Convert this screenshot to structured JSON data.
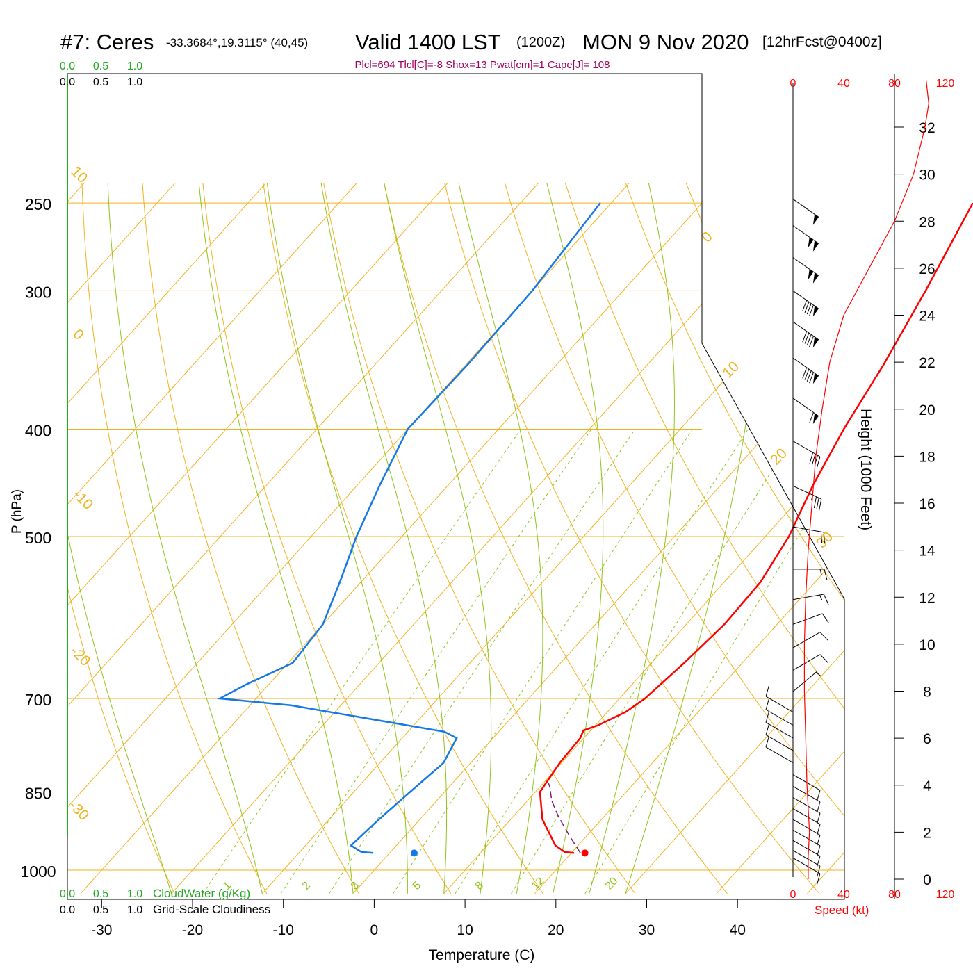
{
  "header": {
    "station": "#7: Ceres",
    "coords": "-33.3684°,19.3115° (40,45)",
    "valid": "Valid 1400 LST",
    "zulu": "(1200Z)",
    "date": "MON 9 Nov 2020",
    "fcst": "[12hrFcst@0400z]"
  },
  "indices": "Plcl=694 Tlcl[C]=-8 Shox=13 Pwat[cm]=1 Cape[J]= 108",
  "axes": {
    "xlabel": "Temperature (C)",
    "ylabel": "P (hPa)",
    "height_label": "Height (1000 Feet)",
    "speed_label": "Speed (kt)",
    "cloudwater_label": "CloudWater (g/Kg)",
    "cloudiness_label": "Grid-Scale Cloudiness",
    "x_ticks": [
      "-30",
      "-20",
      "-10",
      "0",
      "10",
      "20",
      "30",
      "40"
    ],
    "p_ticks": [
      "250",
      "300",
      "400",
      "500",
      "700",
      "850",
      "1000"
    ],
    "height_ticks": [
      "0",
      "2",
      "4",
      "6",
      "8",
      "10",
      "12",
      "14",
      "16",
      "18",
      "20",
      "22",
      "24",
      "26",
      "28",
      "30",
      "32"
    ],
    "speed_ticks": [
      "0",
      "40",
      "80",
      "120"
    ],
    "cloud_ticks": [
      "0.0",
      "0.5",
      "1.0"
    ]
  },
  "chart_data": {
    "type": "line",
    "title": "#7: Ceres Valid 1400 LST (1200Z) MON 9 Nov 2020 [12hrFcst@0400z]",
    "xlabel": "Temperature (C)",
    "ylabel": "P (hPa)",
    "xlim": [
      -33,
      46
    ],
    "ylim_hpa": [
      1000,
      250
    ],
    "isotherm_labels": [
      "10",
      "0",
      "-10",
      "-20",
      "-30",
      "0",
      "10",
      "20",
      "30"
    ],
    "mixing_ratio_labels": [
      "1",
      "2",
      "3",
      "5",
      "8",
      "12",
      "20"
    ],
    "series": [
      {
        "name": "temperature",
        "color": "#ff0000",
        "points": [
          [
            20.3,
            965
          ],
          [
            19.2,
            963
          ],
          [
            17.5,
            950
          ],
          [
            13.5,
            900
          ],
          [
            10.5,
            850
          ],
          [
            9.8,
            800
          ],
          [
            9.6,
            760
          ],
          [
            9.2,
            748
          ],
          [
            10.3,
            740
          ],
          [
            12.0,
            720
          ],
          [
            12.8,
            700
          ],
          [
            13.6,
            650
          ],
          [
            14.2,
            600
          ],
          [
            14.0,
            550
          ],
          [
            12.6,
            500
          ],
          [
            10.2,
            450
          ],
          [
            8.0,
            400
          ],
          [
            6.0,
            350
          ],
          [
            3.3,
            300
          ],
          [
            -0.2,
            250
          ]
        ]
      },
      {
        "name": "dewpoint",
        "color": "#1478e6",
        "points": [
          [
            -1.8,
            965
          ],
          [
            -3.2,
            963
          ],
          [
            -5.0,
            950
          ],
          [
            -4.5,
            900
          ],
          [
            -3.8,
            850
          ],
          [
            -3.0,
            800
          ],
          [
            -4.0,
            760
          ],
          [
            -6.0,
            750
          ],
          [
            -25.5,
            710
          ],
          [
            -34.0,
            700
          ],
          [
            -32.5,
            680
          ],
          [
            -29.5,
            650
          ],
          [
            -30.0,
            600
          ],
          [
            -32.3,
            550
          ],
          [
            -35.0,
            500
          ],
          [
            -37.5,
            450
          ],
          [
            -40.0,
            400
          ],
          [
            -39.8,
            350
          ],
          [
            -40.0,
            300
          ],
          [
            -41.2,
            250
          ]
        ]
      },
      {
        "name": "parcel",
        "color": "#7a1a7a",
        "style": "dashed",
        "points": [
          [
            21.0,
            965
          ],
          [
            18.0,
            930
          ],
          [
            15.0,
            895
          ],
          [
            12.7,
            866
          ],
          [
            11.0,
            840
          ],
          [
            10.6,
            835
          ]
        ]
      }
    ],
    "surface_markers": [
      {
        "kind": "temperature",
        "value": 21.5,
        "p": 965,
        "color": "#ff0000"
      },
      {
        "kind": "dewpoint",
        "value": 2.7,
        "p": 965,
        "color": "#1478e6"
      }
    ],
    "height_axis_kft": [
      0,
      32
    ],
    "wind_speed_axis_kt": [
      0,
      120
    ],
    "wind_speed_profile": [
      [
        12,
        0
      ],
      [
        12,
        1
      ],
      [
        13,
        2
      ],
      [
        11,
        4
      ],
      [
        10,
        6
      ],
      [
        9,
        8
      ],
      [
        9,
        10
      ],
      [
        10,
        12
      ],
      [
        12,
        14
      ],
      [
        15,
        16
      ],
      [
        18,
        18
      ],
      [
        23,
        20
      ],
      [
        29,
        22
      ],
      [
        40,
        24
      ],
      [
        60,
        26
      ],
      [
        80,
        28
      ],
      [
        95,
        30
      ],
      [
        104,
        32
      ],
      [
        107,
        33
      ],
      [
        105,
        34
      ]
    ],
    "wind_barbs": [
      {
        "p": 975,
        "speed_kt": 10,
        "dir_deg": 300
      },
      {
        "p": 960,
        "speed_kt": 10,
        "dir_deg": 300
      },
      {
        "p": 940,
        "speed_kt": 10,
        "dir_deg": 300
      },
      {
        "p": 920,
        "speed_kt": 10,
        "dir_deg": 300
      },
      {
        "p": 900,
        "speed_kt": 10,
        "dir_deg": 300
      },
      {
        "p": 880,
        "speed_kt": 10,
        "dir_deg": 300
      },
      {
        "p": 860,
        "speed_kt": 10,
        "dir_deg": 300
      },
      {
        "p": 840,
        "speed_kt": 10,
        "dir_deg": 300
      },
      {
        "p": 820,
        "speed_kt": 10,
        "dir_deg": 300
      },
      {
        "p": 800,
        "speed_kt": 10,
        "dir_deg": 120
      },
      {
        "p": 780,
        "speed_kt": 10,
        "dir_deg": 120
      },
      {
        "p": 760,
        "speed_kt": 10,
        "dir_deg": 120
      },
      {
        "p": 740,
        "speed_kt": 10,
        "dir_deg": 120
      },
      {
        "p": 720,
        "speed_kt": 10,
        "dir_deg": 120
      },
      {
        "p": 690,
        "speed_kt": 5,
        "dir_deg": 230
      },
      {
        "p": 660,
        "speed_kt": 10,
        "dir_deg": 240
      },
      {
        "p": 630,
        "speed_kt": 10,
        "dir_deg": 240
      },
      {
        "p": 600,
        "speed_kt": 10,
        "dir_deg": 250
      },
      {
        "p": 570,
        "speed_kt": 15,
        "dir_deg": 260
      },
      {
        "p": 535,
        "speed_kt": 15,
        "dir_deg": 270
      },
      {
        "p": 490,
        "speed_kt": 20,
        "dir_deg": 280
      },
      {
        "p": 450,
        "speed_kt": 35,
        "dir_deg": 295
      },
      {
        "p": 410,
        "speed_kt": 40,
        "dir_deg": 300
      },
      {
        "p": 375,
        "speed_kt": 60,
        "dir_deg": 305
      },
      {
        "p": 345,
        "speed_kt": 90,
        "dir_deg": 305
      },
      {
        "p": 320,
        "speed_kt": 90,
        "dir_deg": 305
      },
      {
        "p": 300,
        "speed_kt": 90,
        "dir_deg": 305
      },
      {
        "p": 280,
        "speed_kt": 100,
        "dir_deg": 305
      },
      {
        "p": 262,
        "speed_kt": 100,
        "dir_deg": 305
      },
      {
        "p": 248,
        "speed_kt": 50,
        "dir_deg": 305
      }
    ],
    "colors": {
      "isobar": "#f2b21e",
      "dry_adiabat": "#f2b21e",
      "moist_adiabat": "#8fc41a",
      "mixing_ratio": "#8fc41a",
      "cloudwater": "#22aa22",
      "indices": "#a0005a",
      "speed": "#ff0000"
    }
  }
}
